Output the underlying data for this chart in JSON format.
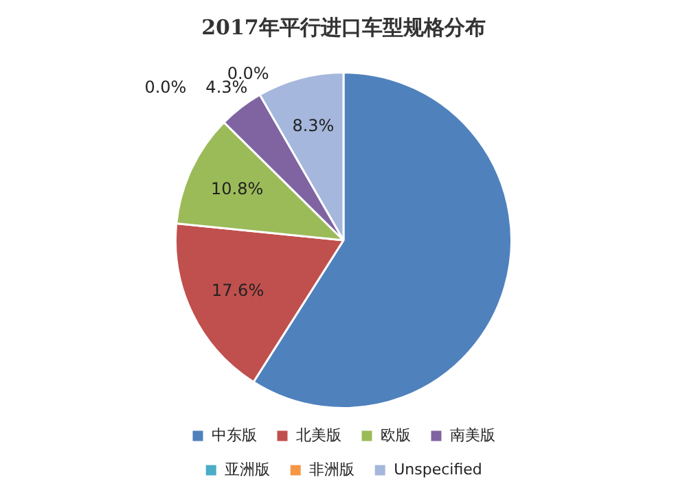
{
  "chart_data": {
    "type": "pie",
    "title": "2017年平行进口车型规格分布",
    "categories": [
      "中东版",
      "北美版",
      "欧版",
      "南美版",
      "亚洲版",
      "非洲版",
      "Unspecified"
    ],
    "values": [
      59.0,
      17.6,
      10.8,
      4.3,
      0.0,
      0.0,
      8.3
    ],
    "value_labels": [
      null,
      "17.6%",
      "10.8%",
      "4.3%",
      "0.0%",
      "0.0%",
      "8.3%"
    ],
    "colors": [
      "#4f81bd",
      "#c0504d",
      "#9bbb59",
      "#8064a2",
      "#4bacc6",
      "#f79646",
      "#a5b7dc"
    ],
    "legend": "bottom"
  }
}
